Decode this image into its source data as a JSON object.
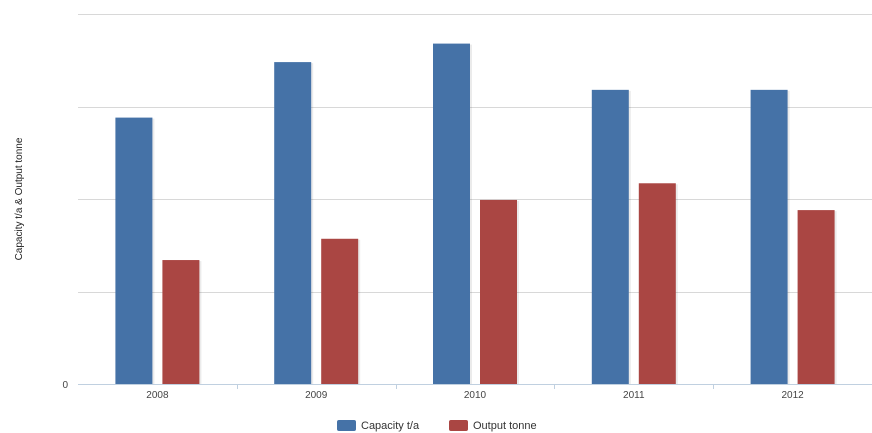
{
  "chart_data": {
    "type": "bar",
    "title": "",
    "xlabel": "",
    "ylabel": "Capacity t/a & Output tonne",
    "categories": [
      "2008",
      "2009",
      "2010",
      "2011",
      "2012"
    ],
    "series": [
      {
        "name": "Capacity t/a",
        "color": "#4572a7",
        "values": [
          288,
          348,
          368,
          318,
          318
        ]
      },
      {
        "name": "Output tonne",
        "color": "#aa4643",
        "values": [
          134,
          157,
          199,
          217,
          188
        ]
      }
    ],
    "ylim": [
      0,
      400
    ],
    "y_tick_labels": [
      "0"
    ],
    "grid": true,
    "legend_position": "bottom-center"
  }
}
